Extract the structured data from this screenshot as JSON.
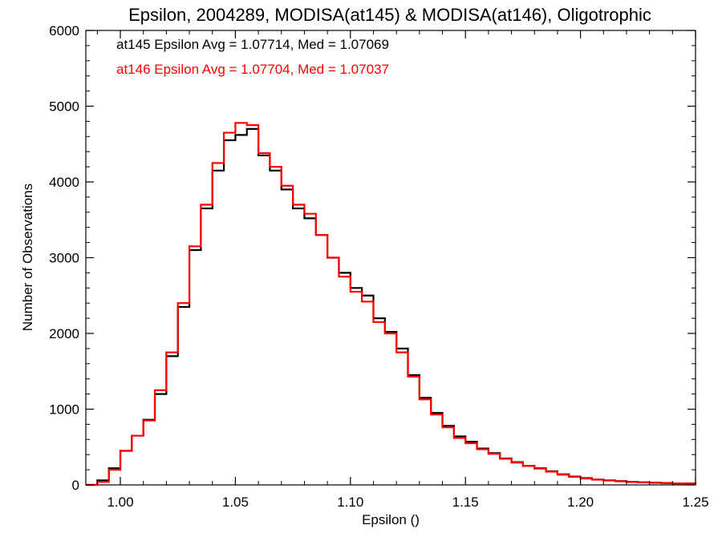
{
  "chart_data": {
    "type": "line",
    "step": true,
    "title": "Epsilon, 2004289, MODISA(at145) & MODISA(at146), Oligotrophic",
    "xlabel": "Epsilon ()",
    "ylabel": "Number of Observations",
    "xlim": [
      0.985,
      1.25
    ],
    "ylim": [
      0,
      6000
    ],
    "x_ticks": [
      "1.00",
      "1.05",
      "1.10",
      "1.15",
      "1.20",
      "1.25"
    ],
    "y_ticks": [
      "0",
      "1000",
      "2000",
      "3000",
      "4000",
      "5000",
      "6000"
    ],
    "grid": false,
    "annotations": [
      {
        "text": "at145 Epsilon Avg = 1.07714, Med = 1.07069",
        "color": "#000000"
      },
      {
        "text": "at146 Epsilon Avg = 1.07704, Med = 1.07037",
        "color": "#ff0000"
      }
    ],
    "series": [
      {
        "color": "#000000",
        "x": [
          0.985,
          0.99,
          0.995,
          1.0,
          1.005,
          1.01,
          1.015,
          1.02,
          1.025,
          1.03,
          1.035,
          1.04,
          1.045,
          1.05,
          1.055,
          1.06,
          1.065,
          1.07,
          1.075,
          1.08,
          1.085,
          1.09,
          1.095,
          1.1,
          1.105,
          1.11,
          1.115,
          1.12,
          1.125,
          1.13,
          1.135,
          1.14,
          1.145,
          1.15,
          1.155,
          1.16,
          1.165,
          1.17,
          1.175,
          1.18,
          1.185,
          1.19,
          1.195,
          1.2,
          1.205,
          1.21,
          1.215,
          1.22,
          1.225,
          1.23,
          1.235,
          1.24,
          1.245,
          1.25
        ],
        "y": [
          0,
          60,
          220,
          450,
          650,
          860,
          1200,
          1700,
          2350,
          3100,
          3650,
          4150,
          4550,
          4620,
          4700,
          4350,
          4150,
          3900,
          3650,
          3520,
          3300,
          3000,
          2800,
          2600,
          2500,
          2200,
          2020,
          1800,
          1450,
          1150,
          950,
          780,
          640,
          570,
          480,
          420,
          350,
          300,
          250,
          220,
          180,
          140,
          110,
          90,
          70,
          60,
          50,
          40,
          35,
          30,
          25,
          20,
          20,
          15
        ]
      },
      {
        "color": "#ff0000",
        "x": [
          0.985,
          0.99,
          0.995,
          1.0,
          1.005,
          1.01,
          1.015,
          1.02,
          1.025,
          1.03,
          1.035,
          1.04,
          1.045,
          1.05,
          1.055,
          1.06,
          1.065,
          1.07,
          1.075,
          1.08,
          1.085,
          1.09,
          1.095,
          1.1,
          1.105,
          1.11,
          1.115,
          1.12,
          1.125,
          1.13,
          1.135,
          1.14,
          1.145,
          1.15,
          1.155,
          1.16,
          1.165,
          1.17,
          1.175,
          1.18,
          1.185,
          1.19,
          1.195,
          1.2,
          1.205,
          1.21,
          1.215,
          1.22,
          1.225,
          1.23,
          1.235,
          1.24,
          1.245,
          1.25
        ],
        "y": [
          0,
          40,
          200,
          450,
          650,
          850,
          1250,
          1750,
          2400,
          3150,
          3700,
          4250,
          4650,
          4780,
          4750,
          4380,
          4200,
          3950,
          3700,
          3580,
          3300,
          3000,
          2750,
          2550,
          2420,
          2150,
          2000,
          1750,
          1430,
          1130,
          930,
          760,
          620,
          550,
          470,
          410,
          345,
          295,
          250,
          215,
          175,
          135,
          105,
          85,
          68,
          58,
          48,
          38,
          33,
          28,
          24,
          20,
          18,
          14
        ]
      }
    ]
  }
}
